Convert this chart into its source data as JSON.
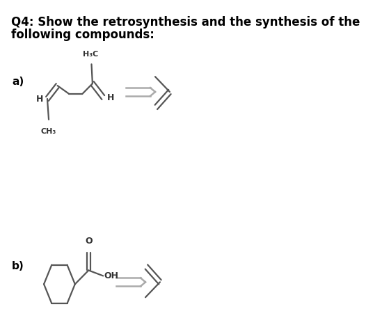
{
  "title_line1": "Q4: Show the retrosynthesis and the synthesis of the",
  "title_line2": "following compounds:",
  "title_fontsize": 12,
  "bg_color": "#ffffff",
  "text_color": "#000000",
  "mol_color": "#555555",
  "lw": 1.6,
  "label_a": "a)",
  "label_b": "b)",
  "arrow_color": "#999999"
}
